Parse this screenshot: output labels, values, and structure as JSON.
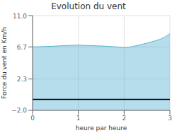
{
  "chart_data": {
    "type": "area",
    "title": "Evolution du vent",
    "xlabel": "heure par heure",
    "ylabel": "Force du vent en Km/h",
    "x": [
      0.0,
      0.1,
      0.2,
      0.3,
      0.4,
      0.5,
      0.6,
      0.7,
      0.75,
      0.9,
      1.0,
      1.1,
      1.2,
      1.3,
      1.4,
      1.5,
      1.6,
      1.7,
      1.8,
      1.9,
      2.0,
      2.1,
      2.2,
      2.3,
      2.4,
      2.5,
      2.6,
      2.7,
      2.8,
      2.9,
      3.0
    ],
    "values": [
      6.7,
      6.72,
      6.74,
      6.76,
      6.78,
      6.82,
      6.85,
      6.88,
      6.9,
      6.93,
      6.95,
      6.92,
      6.9,
      6.88,
      6.85,
      6.83,
      6.8,
      6.76,
      6.72,
      6.65,
      6.58,
      6.65,
      6.78,
      6.92,
      7.08,
      7.22,
      7.4,
      7.58,
      7.78,
      8.1,
      8.5
    ],
    "color": "#5ab4d4",
    "xlim": [
      0,
      3
    ],
    "ylim": [
      -2.0,
      11.0
    ],
    "xticks": [
      0,
      1,
      2,
      3
    ],
    "yticks": [
      {
        "value": -2.0,
        "label": "−2.0"
      },
      2.3,
      6.7,
      {
        "value": 11.0,
        "label": "11.0"
      }
    ],
    "grid": true,
    "hline": -0.5
  }
}
